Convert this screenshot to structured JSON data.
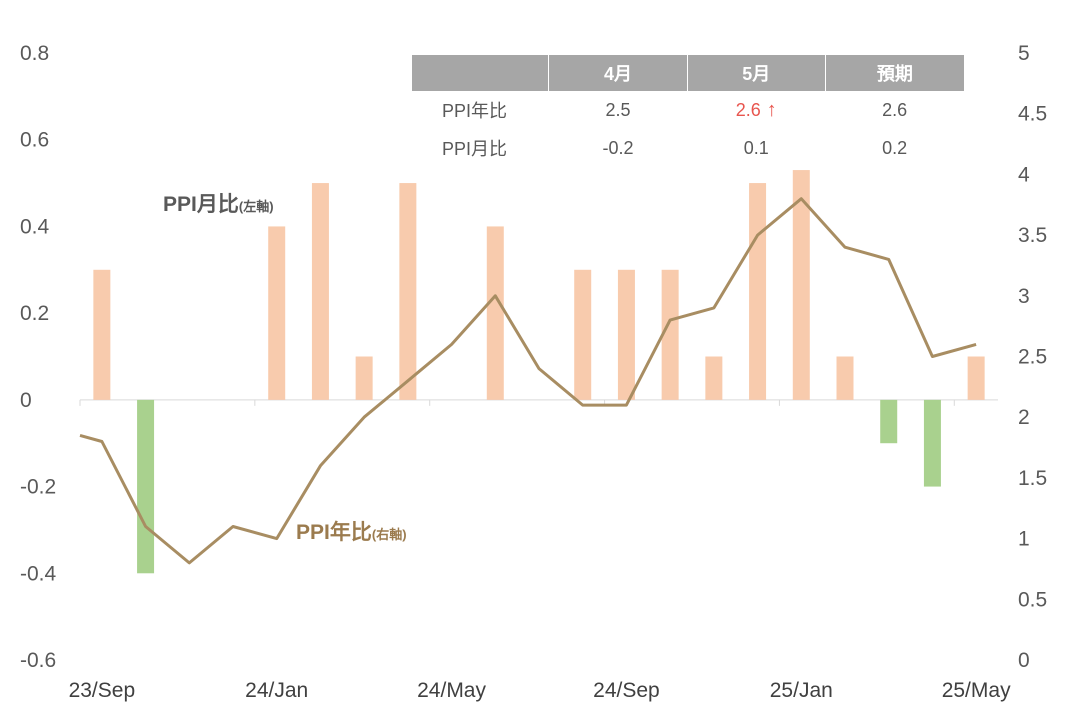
{
  "table": {
    "headers": [
      "",
      "4月",
      "5月",
      "預期"
    ],
    "rows": [
      {
        "label": "PPI年比",
        "values": [
          "2.5",
          "2.6",
          "2.6"
        ],
        "highlight_index": 1,
        "arrow": "↑"
      },
      {
        "label": "PPI月比",
        "values": [
          "-0.2",
          "0.1",
          "0.2"
        ]
      }
    ],
    "highlight_color": "#e8554e"
  },
  "chart_data": {
    "type": "bar+line",
    "x": [
      "2023-09",
      "2023-10",
      "2023-11",
      "2023-12",
      "2024-01",
      "2024-02",
      "2024-03",
      "2024-04",
      "2024-05",
      "2024-06",
      "2024-07",
      "2024-08",
      "2024-09",
      "2024-10",
      "2024-11",
      "2024-12",
      "2025-01",
      "2025-02",
      "2025-03",
      "2025-04",
      "2025-05"
    ],
    "x_tick_labels": [
      "23/Sep",
      "24/Jan",
      "24/May",
      "24/Sep",
      "25/Jan",
      "25/May"
    ],
    "series": [
      {
        "name": "PPI月比",
        "name_suffix": "(左軸)",
        "kind": "bar",
        "axis": "left",
        "values": [
          0.3,
          -0.4,
          0.0,
          0.0,
          0.4,
          0.5,
          0.1,
          0.5,
          0.0,
          0.4,
          0.0,
          0.3,
          0.3,
          0.3,
          0.1,
          0.5,
          0.53,
          0.1,
          -0.1,
          -0.2,
          0.1
        ],
        "positive_color": "#f8cbad",
        "negative_color": "#a9d18e"
      },
      {
        "name": "PPI年比",
        "name_suffix": "(右軸)",
        "kind": "line",
        "axis": "right",
        "values": [
          1.8,
          1.1,
          0.8,
          1.1,
          1.0,
          1.6,
          2.0,
          2.3,
          2.6,
          3.0,
          2.4,
          2.1,
          2.1,
          2.8,
          2.9,
          3.5,
          3.8,
          3.4,
          3.3,
          2.5,
          2.6
        ],
        "line_start_value": 1.85,
        "color": "#a88d62"
      }
    ],
    "y_left": {
      "min": -0.6,
      "max": 0.8,
      "ticks": [
        "0.8",
        "0.6",
        "0.4",
        "0.2",
        "0",
        "-0.2",
        "-0.4",
        "-0.6"
      ]
    },
    "y_right": {
      "min": 0,
      "max": 5,
      "ticks": [
        "5",
        "4.5",
        "4",
        "3.5",
        "3",
        "2.5",
        "2",
        "1.5",
        "1",
        "0.5",
        "0"
      ]
    },
    "grid": false
  }
}
